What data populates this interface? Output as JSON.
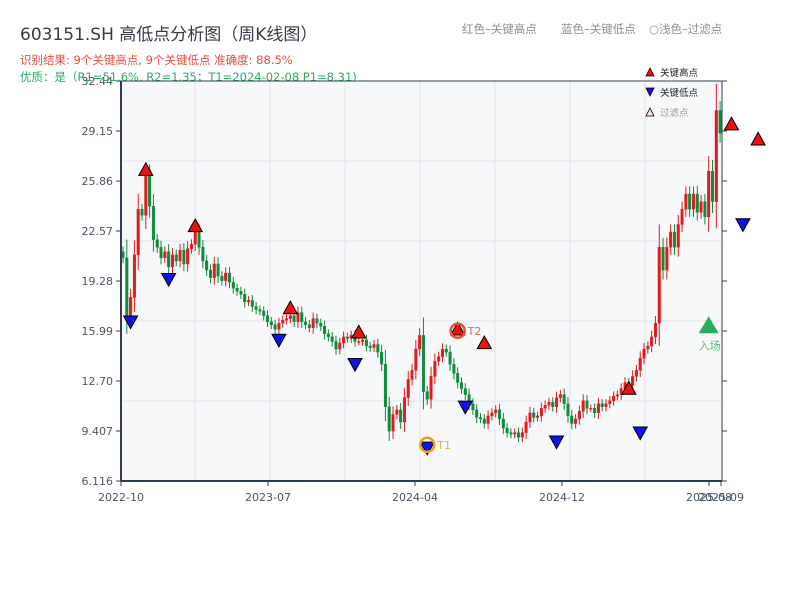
{
  "header": {
    "title": "603151.SH 高低点分析图（周K线图）",
    "result_line": "识别结果: 9个关键高点, 9个关键低点  准确度: 88.5%",
    "quality_line": "优质：是（R1=51.6%, R2=1.35；T1=2024-02-08 P1=8.31)"
  },
  "top_legend": {
    "red": "红色–关键高点",
    "blue": "蓝色–关键低点",
    "light": "○浅色–过滤点"
  },
  "legend": {
    "items": [
      {
        "label": "关键高点",
        "color": "#ee1111",
        "shape": "triangle-up"
      },
      {
        "label": "关键低点",
        "color": "#1111ee",
        "shape": "triangle-down"
      },
      {
        "label": "过滤点",
        "color": "#ffdddd",
        "shape": "triangle-up-outline"
      }
    ]
  },
  "colors": {
    "up": "#e31a1c",
    "down": "#0e8a3a",
    "high_marker": "#ee1111",
    "low_marker": "#1111ee",
    "t1_ring": "#f39c12",
    "t2_ring": "#e74c3c",
    "entry": "#27ae60",
    "plot_bg": "#f7f8fa",
    "grid": "#e3e5e8",
    "axis": "#2c3e50"
  },
  "chart_data": {
    "type": "candlestick",
    "title": "603151.SH 高低点分析图（周K线图）",
    "xlabel": "",
    "ylabel": "",
    "ylim": [
      6.116,
      32.44
    ],
    "y_ticks": [
      "32.44",
      "29.15",
      "25.86",
      "22.57",
      "19.28",
      "15.99",
      "12.70",
      "9.407",
      "6.116"
    ],
    "x_ticks": [
      {
        "label": "2022-10",
        "index": 0
      },
      {
        "label": "2023-07",
        "index": 37
      },
      {
        "label": "2024-04",
        "index": 74
      },
      {
        "label": "2024-12",
        "index": 111
      },
      {
        "label": "2025-08",
        "index": 148
      },
      {
        "label": "2025-09",
        "index": 151
      }
    ],
    "grid": true,
    "closes": [
      20.8,
      17.0,
      18.2,
      21.0,
      24.0,
      23.6,
      26.2,
      24.2,
      22.0,
      21.5,
      20.8,
      21.2,
      20.2,
      21.0,
      20.6,
      21.3,
      20.4,
      21.4,
      21.7,
      22.5,
      21.5,
      20.6,
      20.0,
      19.5,
      20.4,
      19.6,
      19.3,
      19.8,
      19.2,
      18.8,
      18.6,
      18.4,
      17.9,
      18.0,
      17.6,
      17.4,
      17.3,
      17.0,
      16.6,
      16.4,
      16.1,
      16.5,
      16.7,
      16.8,
      17.0,
      16.6,
      17.2,
      16.6,
      16.4,
      16.2,
      16.8,
      16.5,
      16.3,
      15.8,
      15.6,
      15.3,
      14.8,
      15.2,
      15.6,
      15.5,
      15.7,
      15.3,
      15.3,
      15.4,
      15.0,
      14.9,
      15.1,
      14.6,
      13.8,
      11.0,
      9.4,
      10.5,
      10.8,
      10.0,
      11.6,
      12.8,
      13.4,
      14.8,
      15.7,
      12.0,
      11.5,
      13.0,
      14.0,
      14.3,
      14.8,
      14.6,
      13.8,
      13.2,
      12.6,
      12.2,
      11.8,
      11.2,
      10.8,
      10.3,
      10.2,
      9.9,
      10.4,
      10.6,
      10.8,
      10.2,
      9.6,
      9.3,
      9.2,
      9.3,
      9.0,
      9.3,
      10.0,
      10.6,
      10.3,
      10.4,
      10.9,
      11.1,
      11.3,
      11.0,
      11.6,
      11.8,
      11.2,
      10.4,
      9.9,
      10.2,
      10.7,
      11.4,
      10.9,
      10.9,
      10.6,
      11.2,
      11.0,
      11.2,
      11.4,
      11.7,
      11.8,
      12.2,
      12.6,
      12.4,
      13.0,
      13.4,
      14.2,
      14.8,
      15.0,
      15.6,
      16.5,
      21.5,
      20.0,
      21.5,
      22.5,
      21.5,
      23.0,
      24.0,
      25.0,
      24.0,
      25.0,
      23.8,
      24.5,
      23.5,
      26.5,
      24.5,
      30.5,
      29.0
    ],
    "key_highs": [
      {
        "index": 6,
        "price": 26.2
      },
      {
        "index": 19,
        "price": 22.5
      },
      {
        "index": 44,
        "price": 17.1
      },
      {
        "index": 62,
        "price": 15.5
      },
      {
        "index": 88,
        "price": 15.7
      },
      {
        "index": 95,
        "price": 14.8
      },
      {
        "index": 133,
        "price": 11.8
      },
      {
        "index": 160,
        "price": 29.2
      },
      {
        "index": 167,
        "price": 28.2
      }
    ],
    "key_lows": [
      {
        "index": 2,
        "price": 17.0
      },
      {
        "index": 12,
        "price": 19.8
      },
      {
        "index": 41,
        "price": 15.8
      },
      {
        "index": 61,
        "price": 14.2
      },
      {
        "index": 80,
        "price": 8.7
      },
      {
        "index": 90,
        "price": 11.4
      },
      {
        "index": 114,
        "price": 9.1
      },
      {
        "index": 136,
        "price": 9.7
      },
      {
        "index": 163,
        "price": 23.4
      }
    ],
    "annotations": [
      {
        "label": "T1",
        "index": 80,
        "price": 8.5,
        "color": "#f39c12"
      },
      {
        "label": "T2",
        "index": 88,
        "price": 16.0,
        "color": "#e74c3c"
      },
      {
        "label": "入场",
        "index": 154,
        "price": 16.3,
        "color": "#27ae60"
      }
    ]
  }
}
